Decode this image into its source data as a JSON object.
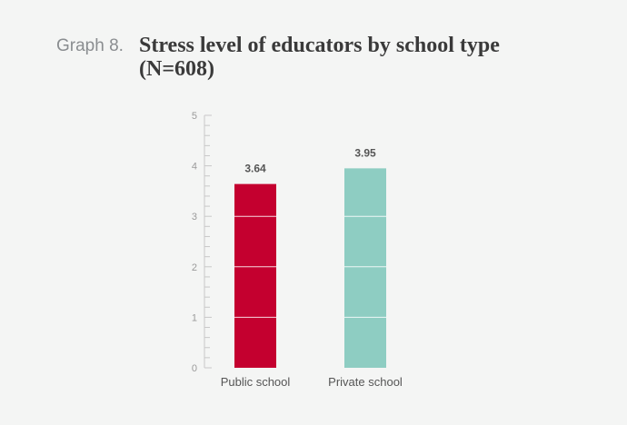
{
  "header": {
    "label": "Graph 8.",
    "title_line1": "Stress level of educators by school type",
    "title_line2": "(N=608)"
  },
  "chart_data": {
    "type": "bar",
    "title": "Stress level of educators by school type (N=608)",
    "categories": [
      "Public school",
      "Private school"
    ],
    "values": [
      3.64,
      3.95
    ],
    "value_labels": [
      "3.64",
      "3.95"
    ],
    "colors": [
      "#c4002f",
      "#8ecdc2"
    ],
    "ylim": [
      0,
      5
    ],
    "yticks": [
      0,
      1,
      2,
      3,
      4,
      5
    ],
    "minor_ticks_per_unit": 5,
    "grid": false,
    "legend": "none"
  }
}
